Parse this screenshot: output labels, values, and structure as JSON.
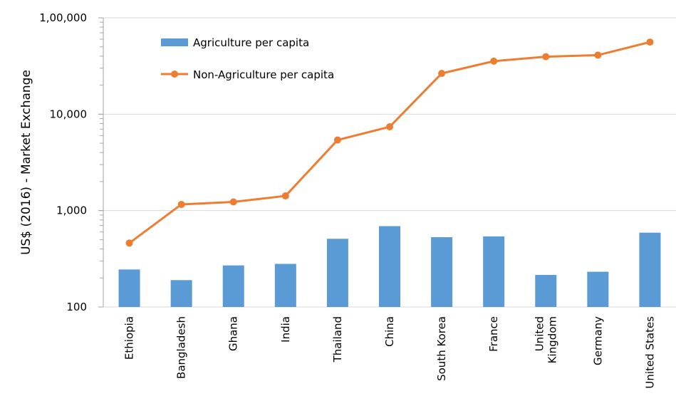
{
  "chart_data": {
    "type": "bar",
    "scale": "log",
    "ylabel": "US$ (2016) - Market Exchange",
    "xlabel": "",
    "title": "",
    "ylim": [
      100,
      100000
    ],
    "y_ticks": [
      {
        "value": 100,
        "label": "100"
      },
      {
        "value": 1000,
        "label": "1,000"
      },
      {
        "value": 10000,
        "label": "10,000"
      },
      {
        "value": 100000,
        "label": "1,00,000"
      }
    ],
    "grid": true,
    "legend_position": "top-left",
    "categories": [
      "Ethiopia",
      "Bangladesh",
      "Ghana",
      "India",
      "Thailand",
      "China",
      "South Korea",
      "France",
      "United Kingdom",
      "Germany",
      "United States"
    ],
    "category_lines": [
      [
        "Ethiopia"
      ],
      [
        "Bangladesh"
      ],
      [
        "Ghana"
      ],
      [
        "India"
      ],
      [
        "Thailand"
      ],
      [
        "China"
      ],
      [
        "South Korea"
      ],
      [
        "France"
      ],
      [
        "United",
        "Kingdom"
      ],
      [
        "Germany"
      ],
      [
        "United States"
      ]
    ],
    "series": [
      {
        "name": "Agriculture per capita",
        "type": "bar",
        "color": "#5B9BD5",
        "values": [
          245,
          190,
          270,
          280,
          510,
          690,
          530,
          540,
          215,
          232,
          590
        ]
      },
      {
        "name": "Non-Agriculture per capita",
        "type": "line",
        "color": "#ED7D31",
        "values": [
          460,
          1160,
          1230,
          1420,
          5400,
          7400,
          26500,
          35500,
          39500,
          41000,
          56000
        ]
      }
    ]
  }
}
